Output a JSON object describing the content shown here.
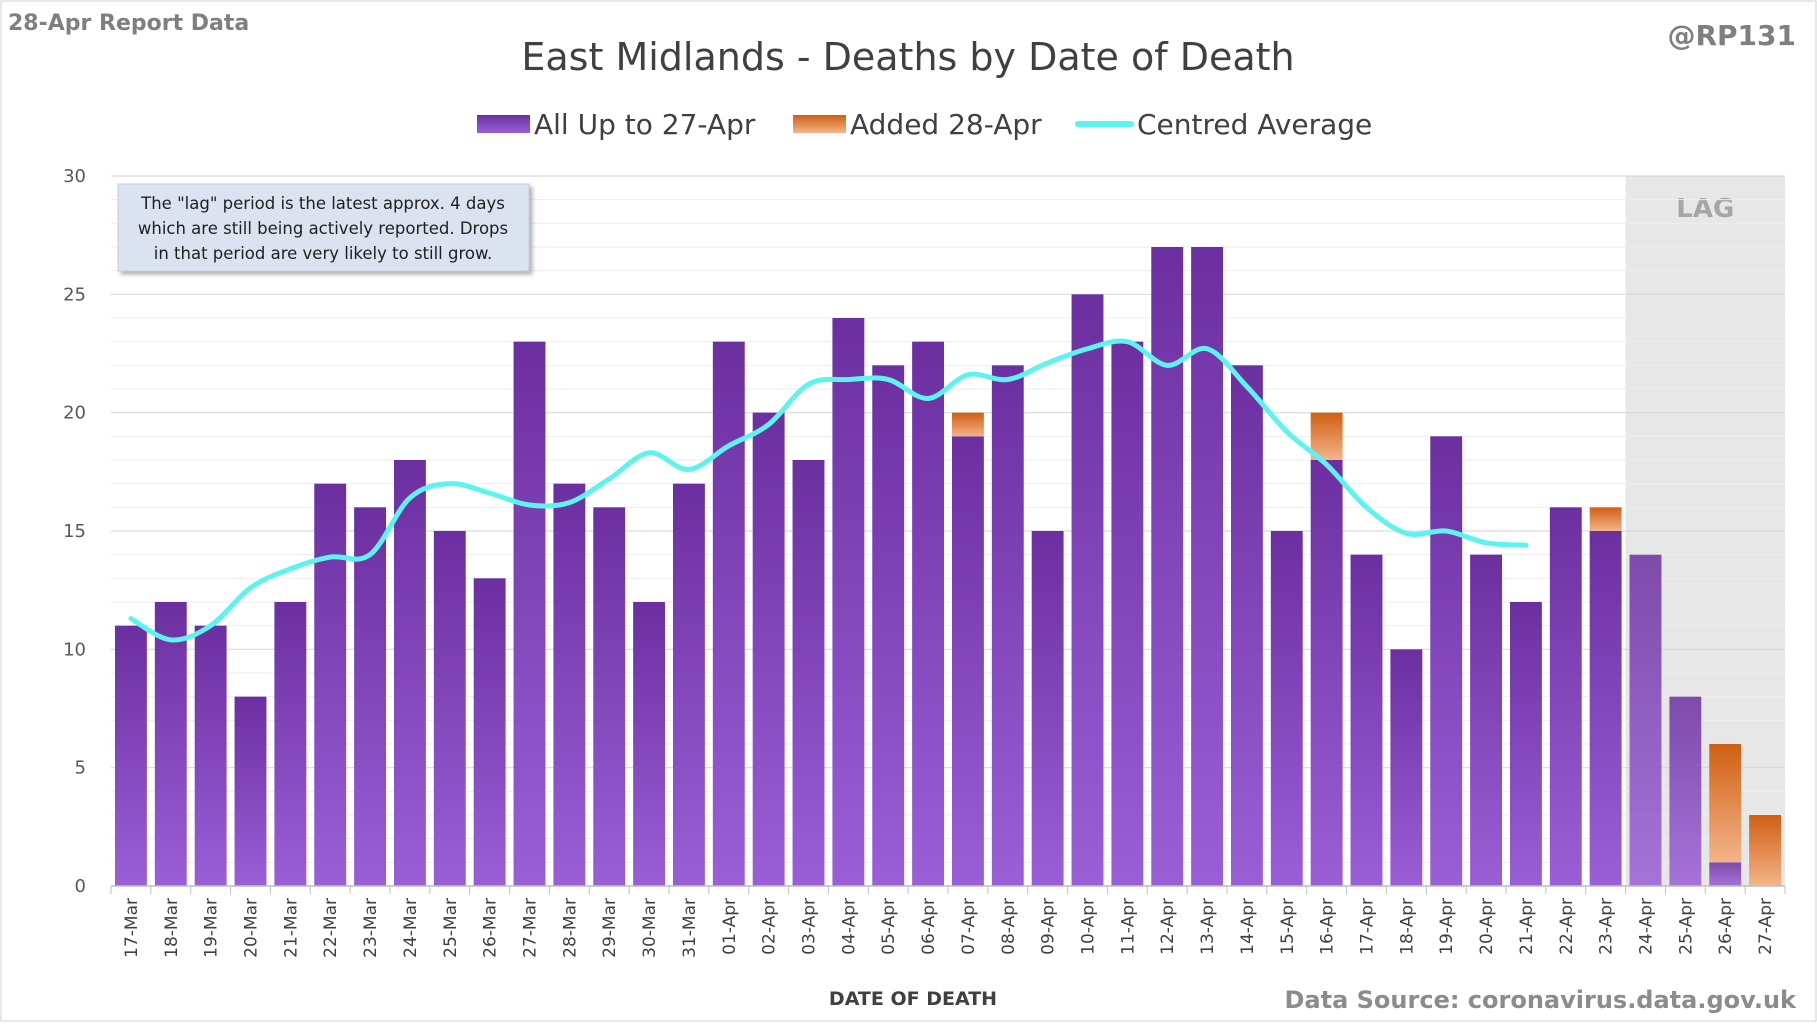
{
  "header": {
    "report_label": "28-Apr Report Data",
    "author": "@RP131",
    "source": "Data Source: coronavirus.data.gov.uk"
  },
  "annotation": {
    "lines": [
      "The \"lag\" period is the latest approx. 4 days",
      "which are still being actively reported.  Drops",
      "in that period are very likely to still grow."
    ]
  },
  "lag_label": "LAG",
  "colors": {
    "purple_top": "#6b2fa0",
    "purple_bottom": "#9a5fd6",
    "orange_top": "#d05f12",
    "orange_bottom": "#f3b48a",
    "average_line": "#5ff3f0",
    "lag_shade": "#e7e7e7",
    "grid": "#d9d9d9",
    "minor_grid": "#eeeeee"
  },
  "chart_data": {
    "type": "bar",
    "stacked": true,
    "title": "East Midlands - Deaths by Date of Death",
    "xlabel": "DATE OF DEATH",
    "ylabel": "",
    "ylim": [
      0,
      30
    ],
    "yticks": [
      0,
      5,
      10,
      15,
      20,
      25,
      30
    ],
    "grid": true,
    "legend_position": "top",
    "lag_categories": [
      "24-Apr",
      "25-Apr",
      "26-Apr",
      "27-Apr"
    ],
    "categories": [
      "17-Mar",
      "18-Mar",
      "19-Mar",
      "20-Mar",
      "21-Mar",
      "22-Mar",
      "23-Mar",
      "24-Mar",
      "25-Mar",
      "26-Mar",
      "27-Mar",
      "28-Mar",
      "29-Mar",
      "30-Mar",
      "31-Mar",
      "01-Apr",
      "02-Apr",
      "03-Apr",
      "04-Apr",
      "05-Apr",
      "06-Apr",
      "07-Apr",
      "08-Apr",
      "09-Apr",
      "10-Apr",
      "11-Apr",
      "12-Apr",
      "13-Apr",
      "14-Apr",
      "15-Apr",
      "16-Apr",
      "17-Apr",
      "18-Apr",
      "19-Apr",
      "20-Apr",
      "21-Apr",
      "22-Apr",
      "23-Apr",
      "24-Apr",
      "25-Apr",
      "26-Apr",
      "27-Apr"
    ],
    "series": [
      {
        "name": "All Up to 27-Apr",
        "kind": "bar",
        "values": [
          11,
          12,
          11,
          8,
          12,
          17,
          16,
          18,
          15,
          13,
          23,
          17,
          16,
          12,
          17,
          23,
          20,
          18,
          24,
          22,
          23,
          19,
          22,
          15,
          25,
          23,
          27,
          27,
          22,
          15,
          18,
          14,
          10,
          19,
          14,
          12,
          16,
          15,
          14,
          8,
          1,
          0
        ]
      },
      {
        "name": "Added 28-Apr",
        "kind": "bar",
        "values": [
          0,
          0,
          0,
          0,
          0,
          0,
          0,
          0,
          0,
          0,
          0,
          0,
          0,
          0,
          0,
          0,
          0,
          0,
          0,
          0,
          0,
          1,
          0,
          0,
          0,
          0,
          0,
          0,
          0,
          0,
          2,
          0,
          0,
          0,
          0,
          0,
          0,
          1,
          0,
          0,
          5,
          3
        ]
      },
      {
        "name": "Centred Average",
        "kind": "line",
        "values": [
          11.3,
          10.4,
          11.0,
          12.6,
          13.4,
          13.9,
          14.0,
          16.4,
          17.0,
          16.6,
          16.1,
          16.2,
          17.2,
          18.3,
          17.6,
          18.6,
          19.5,
          21.2,
          21.4,
          21.4,
          20.6,
          21.6,
          21.4,
          22.1,
          22.7,
          23.0,
          22.0,
          22.7,
          21.1,
          19.2,
          17.8,
          16.0,
          14.9,
          15.0,
          14.5,
          14.4,
          null,
          null,
          null,
          null,
          null,
          null
        ]
      }
    ]
  }
}
